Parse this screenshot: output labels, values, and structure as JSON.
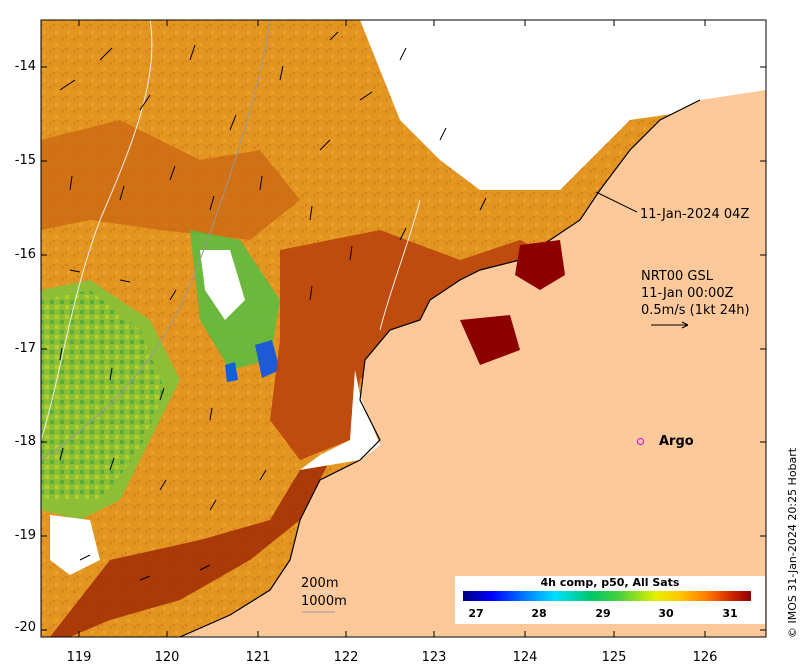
{
  "map": {
    "x_ticks": [
      "119",
      "120",
      "121",
      "122",
      "123",
      "124",
      "125",
      "126"
    ],
    "y_ticks": [
      "-14",
      "-15",
      "-16",
      "-17",
      "-18",
      "-19",
      "-20"
    ],
    "timestamp_label": "11-Jan-2024 04Z",
    "current_block": {
      "line1": "NRT00 GSL",
      "line2": "11-Jan 00:00Z",
      "line3": "0.5m/s (1kt 24h)"
    },
    "argo_label": "Argo",
    "depth_labels": {
      "shallow": "200m",
      "deep": "1000m"
    },
    "colorbar": {
      "title": "4h comp, p50, All Sats",
      "ticks": [
        "27",
        "28",
        "29",
        "30",
        "31"
      ]
    },
    "credit": "© IMOS 31-Jan-2024 20:25 Hobart",
    "colors": {
      "land": "#fdc99a",
      "warm": "#c44a00",
      "hot": "#8c0000",
      "mid": "#e89a1a",
      "cool": "#3fbf3f",
      "cold": "#1040d0"
    }
  }
}
